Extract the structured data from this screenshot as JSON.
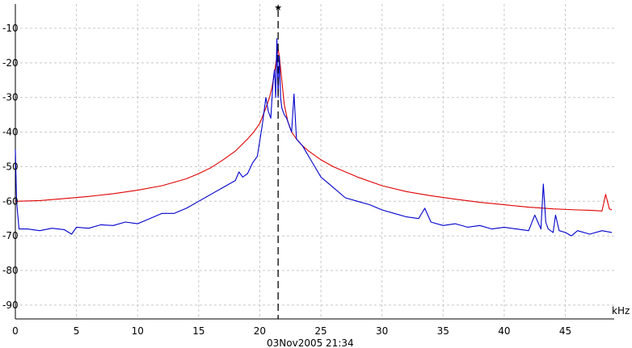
{
  "chart_data": {
    "type": "line",
    "x_unit_label": "kHz",
    "timestamp": "03Nov2005  21:34",
    "xlim": [
      0,
      49
    ],
    "ylim": [
      -94,
      -3
    ],
    "x_ticks": [
      0,
      5,
      10,
      15,
      20,
      25,
      30,
      35,
      40,
      45
    ],
    "y_ticks": [
      -10,
      -20,
      -30,
      -40,
      -50,
      -60,
      -70,
      -80,
      -90
    ],
    "grid": true,
    "marker": {
      "x": 21.5,
      "symbol": "★"
    },
    "colors": {
      "measured": "#0000cc",
      "model": "#e00000",
      "grid": "#c8c8c8"
    },
    "series": [
      {
        "color": "#e00000",
        "x": [
          0,
          2,
          4,
          6,
          8,
          10,
          12,
          14,
          15,
          16,
          17,
          18,
          19,
          19.5,
          20,
          20.5,
          20.8,
          21,
          21.2,
          21.4,
          21.5,
          21.6,
          21.8,
          22,
          22.3,
          22.6,
          23,
          23.5,
          24,
          25,
          26,
          27,
          28,
          30,
          32,
          34,
          36,
          38,
          40,
          42,
          44,
          46,
          47,
          48,
          48.3,
          48.6,
          48.8
        ],
        "y": [
          -60,
          -59.8,
          -59.2,
          -58.6,
          -57.8,
          -56.8,
          -55.5,
          -53.5,
          -52,
          -50.3,
          -48,
          -45.5,
          -42,
          -40,
          -37.5,
          -33,
          -30,
          -27,
          -23,
          -18,
          -16,
          -18,
          -25,
          -32,
          -37,
          -40,
          -42,
          -44,
          -45.5,
          -48,
          -50,
          -51.5,
          -53,
          -55.5,
          -57.2,
          -58.4,
          -59.4,
          -60.3,
          -61,
          -61.7,
          -62.2,
          -62.5,
          -62.6,
          -62.8,
          -58,
          -62.2,
          -62.5
        ]
      },
      {
        "color": "#0000cc",
        "x": [
          0,
          0.1,
          0.3,
          1,
          2,
          3,
          4,
          4.6,
          5,
          6,
          7,
          8,
          9,
          10,
          11,
          12,
          13,
          14,
          15,
          16,
          17,
          17.5,
          18,
          18.3,
          18.6,
          19,
          19.4,
          19.8,
          20.2,
          20.5,
          20.7,
          20.9,
          21.0,
          21.1,
          21.2,
          21.3,
          21.4,
          21.5,
          21.6,
          21.7,
          21.8,
          22.0,
          22.2,
          22.4,
          22.6,
          22.8,
          23,
          23.5,
          24,
          24.5,
          25,
          26,
          27,
          28,
          29,
          30,
          31,
          32,
          33,
          33.5,
          34,
          35,
          36,
          37,
          38,
          39,
          40,
          41,
          42,
          42.5,
          43,
          43.2,
          43.4,
          43.6,
          44,
          44.2,
          44.5,
          45,
          45.5,
          46,
          47,
          48,
          48.8
        ],
        "y": [
          -45,
          -60,
          -68,
          -68,
          -68.5,
          -67.8,
          -68.2,
          -69.5,
          -67.5,
          -67.8,
          -66.8,
          -67,
          -66,
          -66.5,
          -65,
          -63.5,
          -63.5,
          -62,
          -60,
          -58,
          -56,
          -55,
          -54,
          -51.5,
          -53,
          -52,
          -49,
          -47,
          -38,
          -30,
          -34,
          -36,
          -30,
          -25,
          -22,
          -30,
          -13,
          -30,
          -18,
          -30,
          -33,
          -35,
          -36,
          -38,
          -40,
          -29,
          -42,
          -44,
          -47,
          -50,
          -53,
          -56,
          -59,
          -60,
          -61,
          -62.5,
          -63.5,
          -64.5,
          -65,
          -62,
          -66,
          -67,
          -66.5,
          -67.5,
          -67,
          -68,
          -67.5,
          -68,
          -68.5,
          -64,
          -68,
          -55,
          -66,
          -68,
          -69,
          -64,
          -68.5,
          -69,
          -70,
          -68.5,
          -69.5,
          -68.5,
          -69
        ]
      }
    ]
  }
}
